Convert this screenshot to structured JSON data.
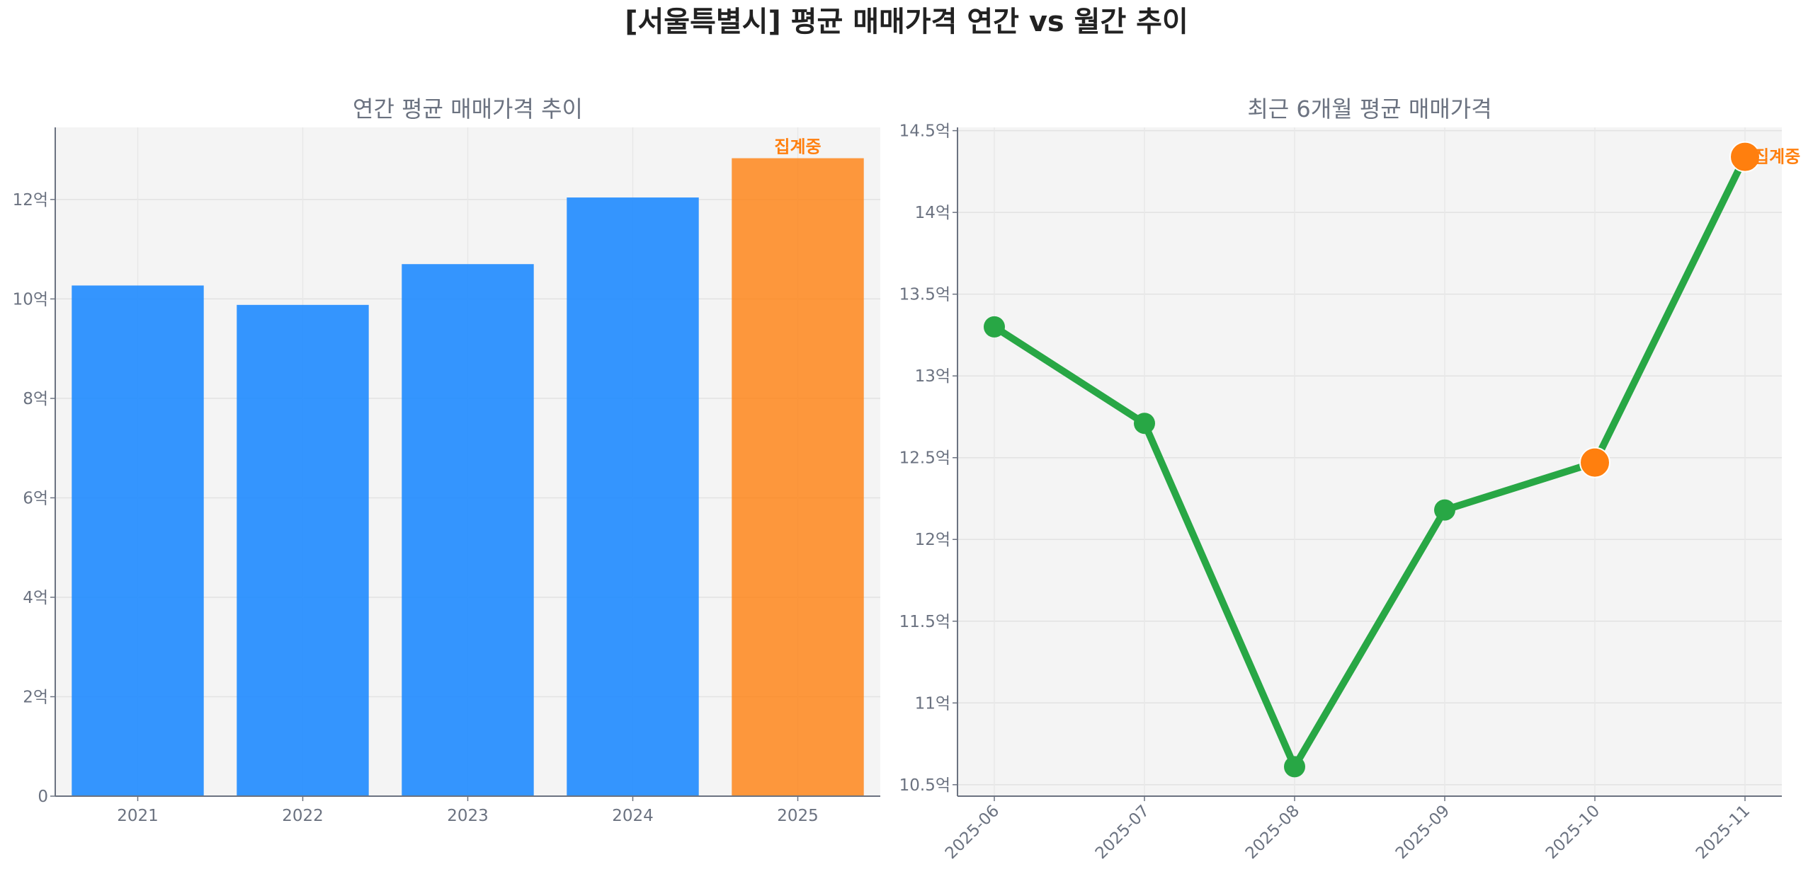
{
  "title": "[서울특별시] 평균 매매가격 연간 vs 월간 추이",
  "chart_data": [
    {
      "type": "bar",
      "title": "연간 평균 매매가격 추이",
      "categories": [
        "2021",
        "2022",
        "2023",
        "2024",
        "2025"
      ],
      "values": [
        10.27,
        9.88,
        10.7,
        12.04,
        12.83
      ],
      "unit": "억",
      "ylim": [
        0,
        13.45
      ],
      "yticks": [
        0,
        2,
        4,
        6,
        8,
        10,
        12
      ],
      "ytick_labels": [
        "0",
        "2억",
        "4억",
        "6억",
        "8억",
        "10억",
        "12억"
      ],
      "colors": [
        "#1f8bff",
        "#1f8bff",
        "#1f8bff",
        "#1f8bff",
        "#ff7f0e"
      ],
      "annotations": [
        {
          "category": "2025",
          "text": "집계중"
        }
      ],
      "grid": true
    },
    {
      "type": "line",
      "title": "최근 6개월 평균 매매가격",
      "x": [
        "2025-06",
        "2025-07",
        "2025-08",
        "2025-09",
        "2025-10",
        "2025-11"
      ],
      "values": [
        13.3,
        12.71,
        10.61,
        12.18,
        12.47,
        14.34
      ],
      "unit": "억",
      "ylim": [
        10.43,
        14.52
      ],
      "yticks": [
        10.5,
        11,
        11.5,
        12,
        12.5,
        13,
        13.5,
        14,
        14.5
      ],
      "ytick_labels": [
        "10.5억",
        "11억",
        "11.5억",
        "12억",
        "12.5억",
        "13억",
        "13.5억",
        "14억",
        "14.5억"
      ],
      "line_color": "#28a745",
      "highlight_color": "#ff7f0e",
      "highlighted_points": [
        "2025-10",
        "2025-11"
      ],
      "annotations": [
        {
          "x": "2025-11",
          "text": "집계중"
        }
      ],
      "grid": true
    }
  ]
}
